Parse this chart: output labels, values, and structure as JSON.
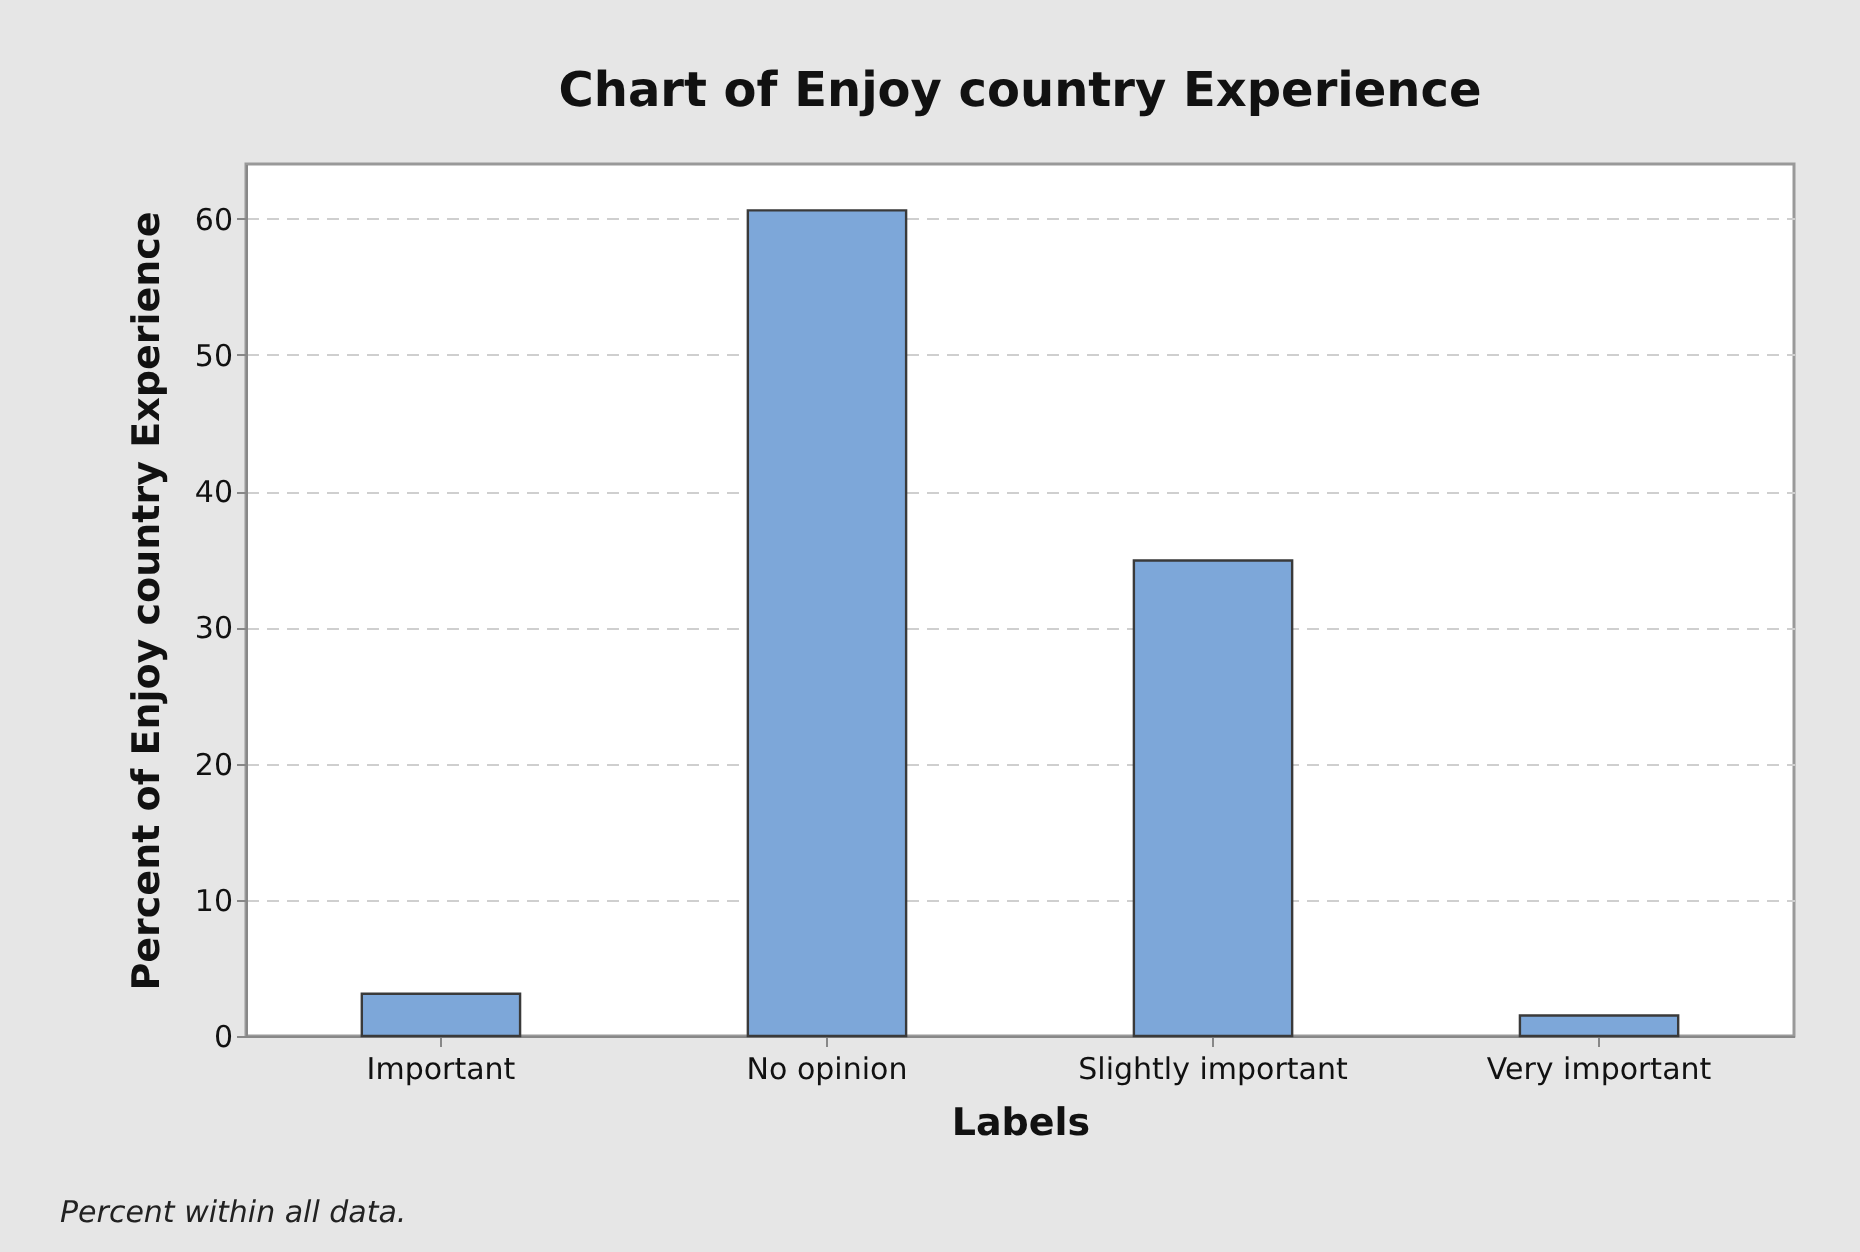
{
  "chart_data": {
    "type": "bar",
    "title": "Chart of Enjoy country Experience",
    "xlabel": "Labels",
    "ylabel": "Percent of Enjoy country Experience",
    "categories": [
      "Important",
      "No opinion",
      "Slightly  important",
      "Very important"
    ],
    "values": [
      3.1,
      60.6,
      34.9,
      1.5
    ],
    "color": "#7da7d9",
    "ylim": [
      0,
      64
    ],
    "yticks": [
      0,
      10,
      20,
      30,
      40,
      50,
      60
    ],
    "grid": "y",
    "annotations": [
      "Percent within all data."
    ]
  }
}
